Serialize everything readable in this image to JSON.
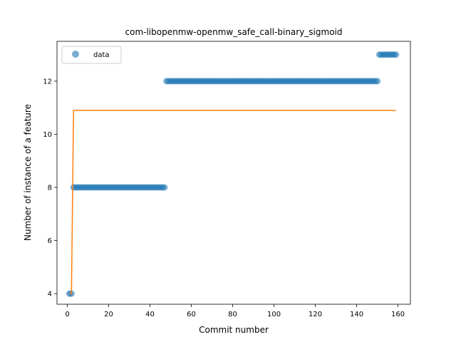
{
  "chart_data": {
    "type": "scatter",
    "title": "com-libopenmw-openmw_safe_call-binary_sigmoid",
    "xlabel": "Commit number",
    "ylabel": "Number of instance of a feature",
    "xlim": [
      -5,
      166
    ],
    "ylim": [
      3.6,
      13.5
    ],
    "xticks": [
      "0",
      "20",
      "40",
      "60",
      "80",
      "100",
      "120",
      "140",
      "160"
    ],
    "yticks": [
      "4",
      "6",
      "8",
      "10",
      "12"
    ],
    "grid": false,
    "legend": {
      "position": "top-left",
      "entries": [
        "data"
      ]
    },
    "colors": {
      "data": "#1f77b4",
      "fit": "#ff7f0e"
    },
    "series": [
      {
        "name": "data",
        "kind": "scatter",
        "segments": [
          {
            "x_start": 1,
            "x_end": 2,
            "y": 4
          },
          {
            "x_start": 3,
            "x_end": 47,
            "y": 8
          },
          {
            "x_start": 48,
            "x_end": 150,
            "y": 12
          },
          {
            "x_start": 151,
            "x_end": 159,
            "y": 13
          }
        ]
      },
      {
        "kind": "line",
        "x": [
          1,
          2,
          3,
          159
        ],
        "y": [
          4,
          4,
          10.9,
          10.9
        ]
      }
    ]
  }
}
